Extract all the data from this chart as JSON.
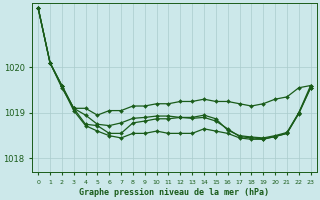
{
  "bg_color": "#cce8ea",
  "grid_color": "#aacccc",
  "line_color": "#1a5c1a",
  "marker_color": "#1a5c1a",
  "xlabel": "Graphe pression niveau de la mer (hPa)",
  "xlabel_color": "#1a5c1a",
  "tick_color": "#1a5c1a",
  "ylim": [
    1017.7,
    1021.4
  ],
  "xlim": [
    -0.5,
    23.5
  ],
  "yticks": [
    1018,
    1019,
    1020
  ],
  "xtick_labels": [
    "0",
    "1",
    "2",
    "3",
    "4",
    "5",
    "6",
    "7",
    "8",
    "9",
    "10",
    "11",
    "12",
    "13",
    "14",
    "15",
    "16",
    "17",
    "18",
    "19",
    "20",
    "21",
    "22",
    "23"
  ],
  "series": [
    [
      1021.3,
      1020.1,
      1019.6,
      1019.1,
      1018.75,
      1018.72,
      1018.55,
      1018.55,
      1018.78,
      1018.82,
      1018.87,
      1018.87,
      1018.9,
      1018.9,
      1018.95,
      1018.87,
      1018.62,
      1018.5,
      1018.47,
      1018.45,
      1018.5,
      1018.57,
      1019.0,
      1019.55
    ],
    [
      1021.3,
      1020.1,
      1019.55,
      1019.1,
      1019.1,
      1018.95,
      1019.05,
      1019.05,
      1019.15,
      1019.15,
      1019.2,
      1019.2,
      1019.25,
      1019.25,
      1019.3,
      1019.25,
      1019.25,
      1019.2,
      1019.15,
      1019.2,
      1019.3,
      1019.35,
      1019.55,
      1019.6
    ],
    [
      1021.3,
      1020.1,
      1019.6,
      1019.1,
      1018.95,
      1018.75,
      1018.72,
      1018.78,
      1018.88,
      1018.9,
      1018.93,
      1018.93,
      1018.9,
      1018.88,
      1018.9,
      1018.82,
      1018.65,
      1018.48,
      1018.45,
      1018.43,
      1018.48,
      1018.55,
      1019.0,
      1019.6
    ],
    [
      1021.3,
      1020.1,
      1019.58,
      1019.05,
      1018.72,
      1018.6,
      1018.5,
      1018.45,
      1018.55,
      1018.55,
      1018.6,
      1018.55,
      1018.55,
      1018.55,
      1018.65,
      1018.6,
      1018.55,
      1018.45,
      1018.42,
      1018.42,
      1018.48,
      1018.55,
      1018.98,
      1019.55
    ]
  ]
}
